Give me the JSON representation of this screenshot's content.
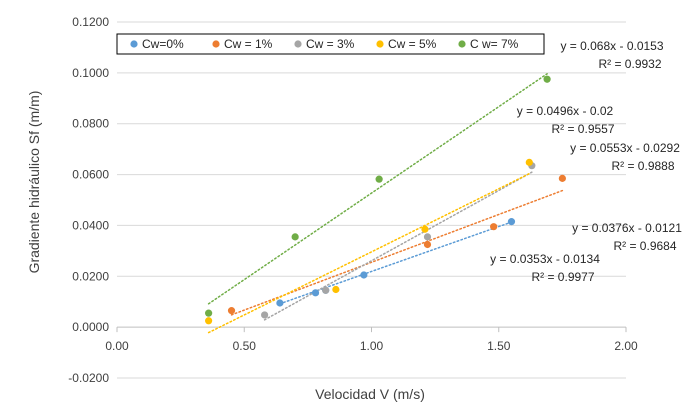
{
  "chart_data": {
    "type": "scatter",
    "title": "",
    "xlabel": "Velocidad V (m/s)",
    "ylabel": "Gradiente hidráulico Sf (m/m)",
    "xlim": [
      0,
      2
    ],
    "ylim": [
      -0.02,
      0.12
    ],
    "xticks": [
      0,
      0.5,
      1.0,
      1.5,
      2.0
    ],
    "xtick_labels": [
      "0.00",
      "0.50",
      "1.00",
      "1.50",
      "2.00"
    ],
    "yticks": [
      -0.02,
      0,
      0.02,
      0.04,
      0.06,
      0.08,
      0.1,
      0.12
    ],
    "ytick_labels": [
      "-0.0200",
      "0.0000",
      "0.0200",
      "0.0400",
      "0.0600",
      "0.0800",
      "0.1000",
      "0.1200"
    ],
    "grid": "horizontal",
    "legend_position": "top",
    "series": [
      {
        "name": "Cw=0%",
        "color": "#5B9BD5",
        "x": [
          0.64,
          0.78,
          0.82,
          0.97,
          1.55
        ],
        "y": [
          0.0095,
          0.0135,
          0.0145,
          0.0205,
          0.0415
        ],
        "trendline": {
          "slope": 0.0353,
          "intercept": -0.0134,
          "x_range": [
            0.64,
            1.55
          ]
        }
      },
      {
        "name": "Cw = 1%",
        "color": "#ED7D31",
        "x": [
          0.45,
          1.22,
          1.48,
          1.75
        ],
        "y": [
          0.0065,
          0.0325,
          0.0395,
          0.0585
        ],
        "trendline": {
          "slope": 0.0376,
          "intercept": -0.0121,
          "x_range": [
            0.45,
            1.75
          ]
        }
      },
      {
        "name": "Cw = 3%",
        "color": "#A5A5A5",
        "x": [
          0.58,
          0.82,
          1.22,
          1.63
        ],
        "y": [
          0.0048,
          0.0145,
          0.0355,
          0.0635
        ],
        "trendline": {
          "slope": 0.0553,
          "intercept": -0.0292,
          "x_range": [
            0.58,
            1.63
          ]
        }
      },
      {
        "name": "Cw = 5%",
        "color": "#FFC000",
        "x": [
          0.36,
          0.86,
          1.21,
          1.62
        ],
        "y": [
          0.0025,
          0.0148,
          0.0385,
          0.0648
        ],
        "trendline": {
          "slope": 0.0496,
          "intercept": -0.02,
          "x_range": [
            0.36,
            1.62
          ]
        }
      },
      {
        "name": "C w= 7%",
        "color": "#70AD47",
        "x": [
          0.36,
          0.7,
          1.03,
          1.69
        ],
        "y": [
          0.0055,
          0.0355,
          0.0582,
          0.0975
        ],
        "trendline": {
          "slope": 0.068,
          "intercept": -0.0153,
          "x_range": [
            0.36,
            1.69
          ]
        }
      }
    ],
    "annotations": [
      {
        "equation": "y = 0.068x - 0.0153",
        "r2": "R² = 0.9932",
        "series": "C w= 7%"
      },
      {
        "equation": "y = 0.0496x - 0.02",
        "r2": "R² = 0.9557",
        "series": "Cw = 5%"
      },
      {
        "equation": "y = 0.0553x - 0.0292",
        "r2": "R² = 0.9888",
        "series": "Cw = 3%"
      },
      {
        "equation": "y = 0.0376x - 0.0121",
        "r2": "R² = 0.9684",
        "series": "Cw = 1%"
      },
      {
        "equation": "y = 0.0353x - 0.0134",
        "r2": "R² = 0.9977",
        "series": "Cw=0%"
      }
    ]
  }
}
